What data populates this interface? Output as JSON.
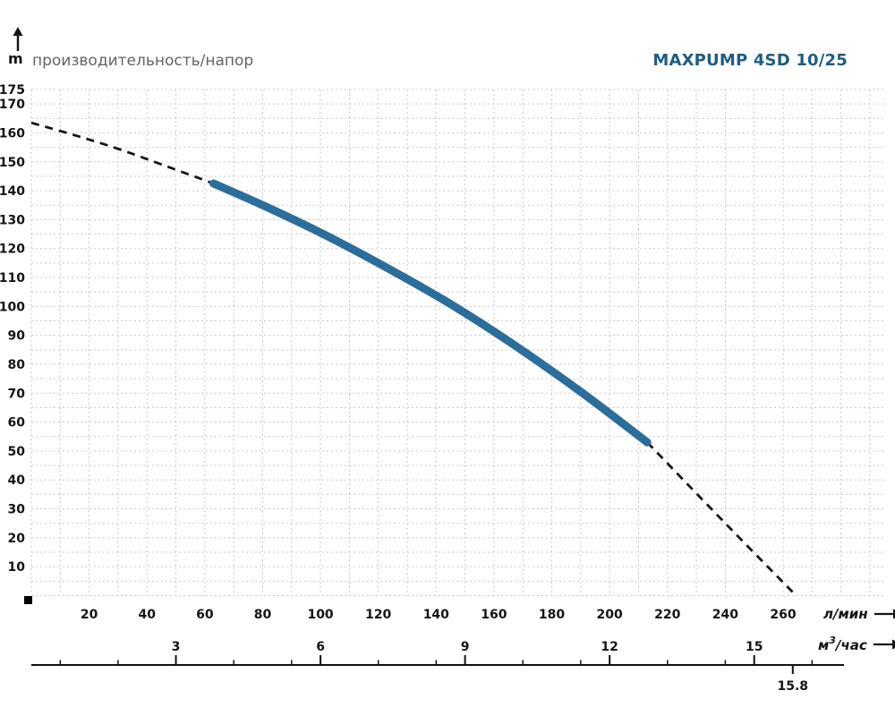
{
  "header": {
    "y_axis_unit": "m",
    "axis_title": "производительность/напор",
    "chart_title": "MAXPUMP 4SD 10/25"
  },
  "footer": {
    "x_unit_label": "л/мин",
    "x2_unit_base": "м",
    "x2_unit_sup": "3",
    "x2_unit_rest": "/час"
  },
  "colors": {
    "grid": "#c9c9c9",
    "text": "#141414",
    "title": "#1f5c80",
    "curve_solid": "#2d6d9a",
    "curve_dashed": "#161616",
    "axis_line": "#111111",
    "origin_marker": "#000000"
  },
  "chart_data": {
    "type": "line",
    "title": "MAXPUMP 4SD 10/25",
    "ylabel": "m",
    "xlabel": "л/мин",
    "x2label": "м3/час",
    "xlim": [
      0,
      295
    ],
    "ylim": [
      0,
      175
    ],
    "grid": true,
    "y_ticks_labeled": [
      175,
      170,
      160,
      150,
      140,
      130,
      120,
      110,
      100,
      90,
      80,
      70,
      60,
      50,
      40,
      30,
      20,
      10
    ],
    "y_minor_step": 5,
    "x_ticks_labeled": [
      20,
      40,
      60,
      80,
      100,
      120,
      140,
      160,
      180,
      200,
      220,
      240,
      260
    ],
    "x_minor_step": 10,
    "x2_ticks_labeled": [
      3,
      6,
      9,
      12,
      15
    ],
    "x2_units_per_x_unit": 16.6667,
    "x2_minor_ticks_in_x_units": [
      10,
      30,
      70,
      90,
      120,
      140,
      170,
      190,
      220,
      240,
      270
    ],
    "x2_max_tick": 15.8,
    "x2_max_tick_label": "15.8",
    "series": [
      {
        "name": "head_vs_flow",
        "solid_range_x": [
          63,
          213
        ],
        "points": [
          [
            0,
            163.5
          ],
          [
            15,
            159.2
          ],
          [
            30,
            154.5
          ],
          [
            45,
            149.1
          ],
          [
            63,
            142.5
          ],
          [
            80,
            135.0
          ],
          [
            100,
            125.5
          ],
          [
            120,
            115.0
          ],
          [
            143,
            102.0
          ],
          [
            165,
            88.0
          ],
          [
            190,
            70.5
          ],
          [
            213,
            53.0
          ],
          [
            240,
            25.0
          ],
          [
            264,
            0.5
          ]
        ]
      }
    ]
  }
}
